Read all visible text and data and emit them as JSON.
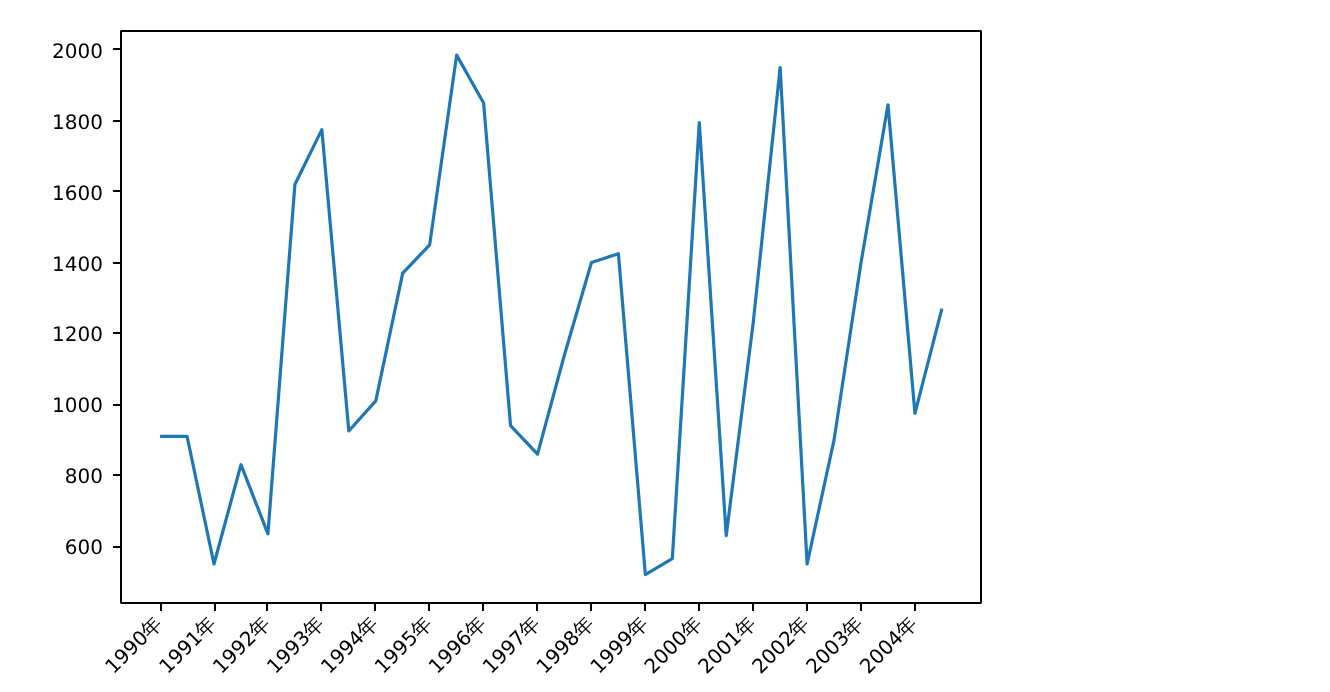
{
  "chart_data": {
    "type": "line",
    "categories": [
      "1990年",
      null,
      "1991年",
      null,
      "1992年",
      null,
      "1993年",
      null,
      "1994年",
      null,
      "1995年",
      null,
      "1996年",
      null,
      "1997年",
      null,
      "1998年",
      null,
      "1999年",
      null,
      "2000年",
      null,
      "2001年",
      null,
      "2002年",
      null,
      "2003年",
      null,
      "2004年",
      null
    ],
    "series": [
      {
        "color": "#1f77b4",
        "values": [
          910,
          910,
          550,
          830,
          635,
          1620,
          1775,
          925,
          1010,
          1370,
          1450,
          1985,
          1850,
          940,
          860,
          1140,
          1400,
          1425,
          520,
          565,
          1795,
          630,
          1230,
          1950,
          550,
          900,
          1400,
          1845,
          975,
          1270
        ]
      }
    ],
    "ylim": [
      440,
      2053
    ],
    "yticks": [
      600,
      800,
      1000,
      1200,
      1400,
      1600,
      1800,
      2000
    ],
    "grid": false
  }
}
